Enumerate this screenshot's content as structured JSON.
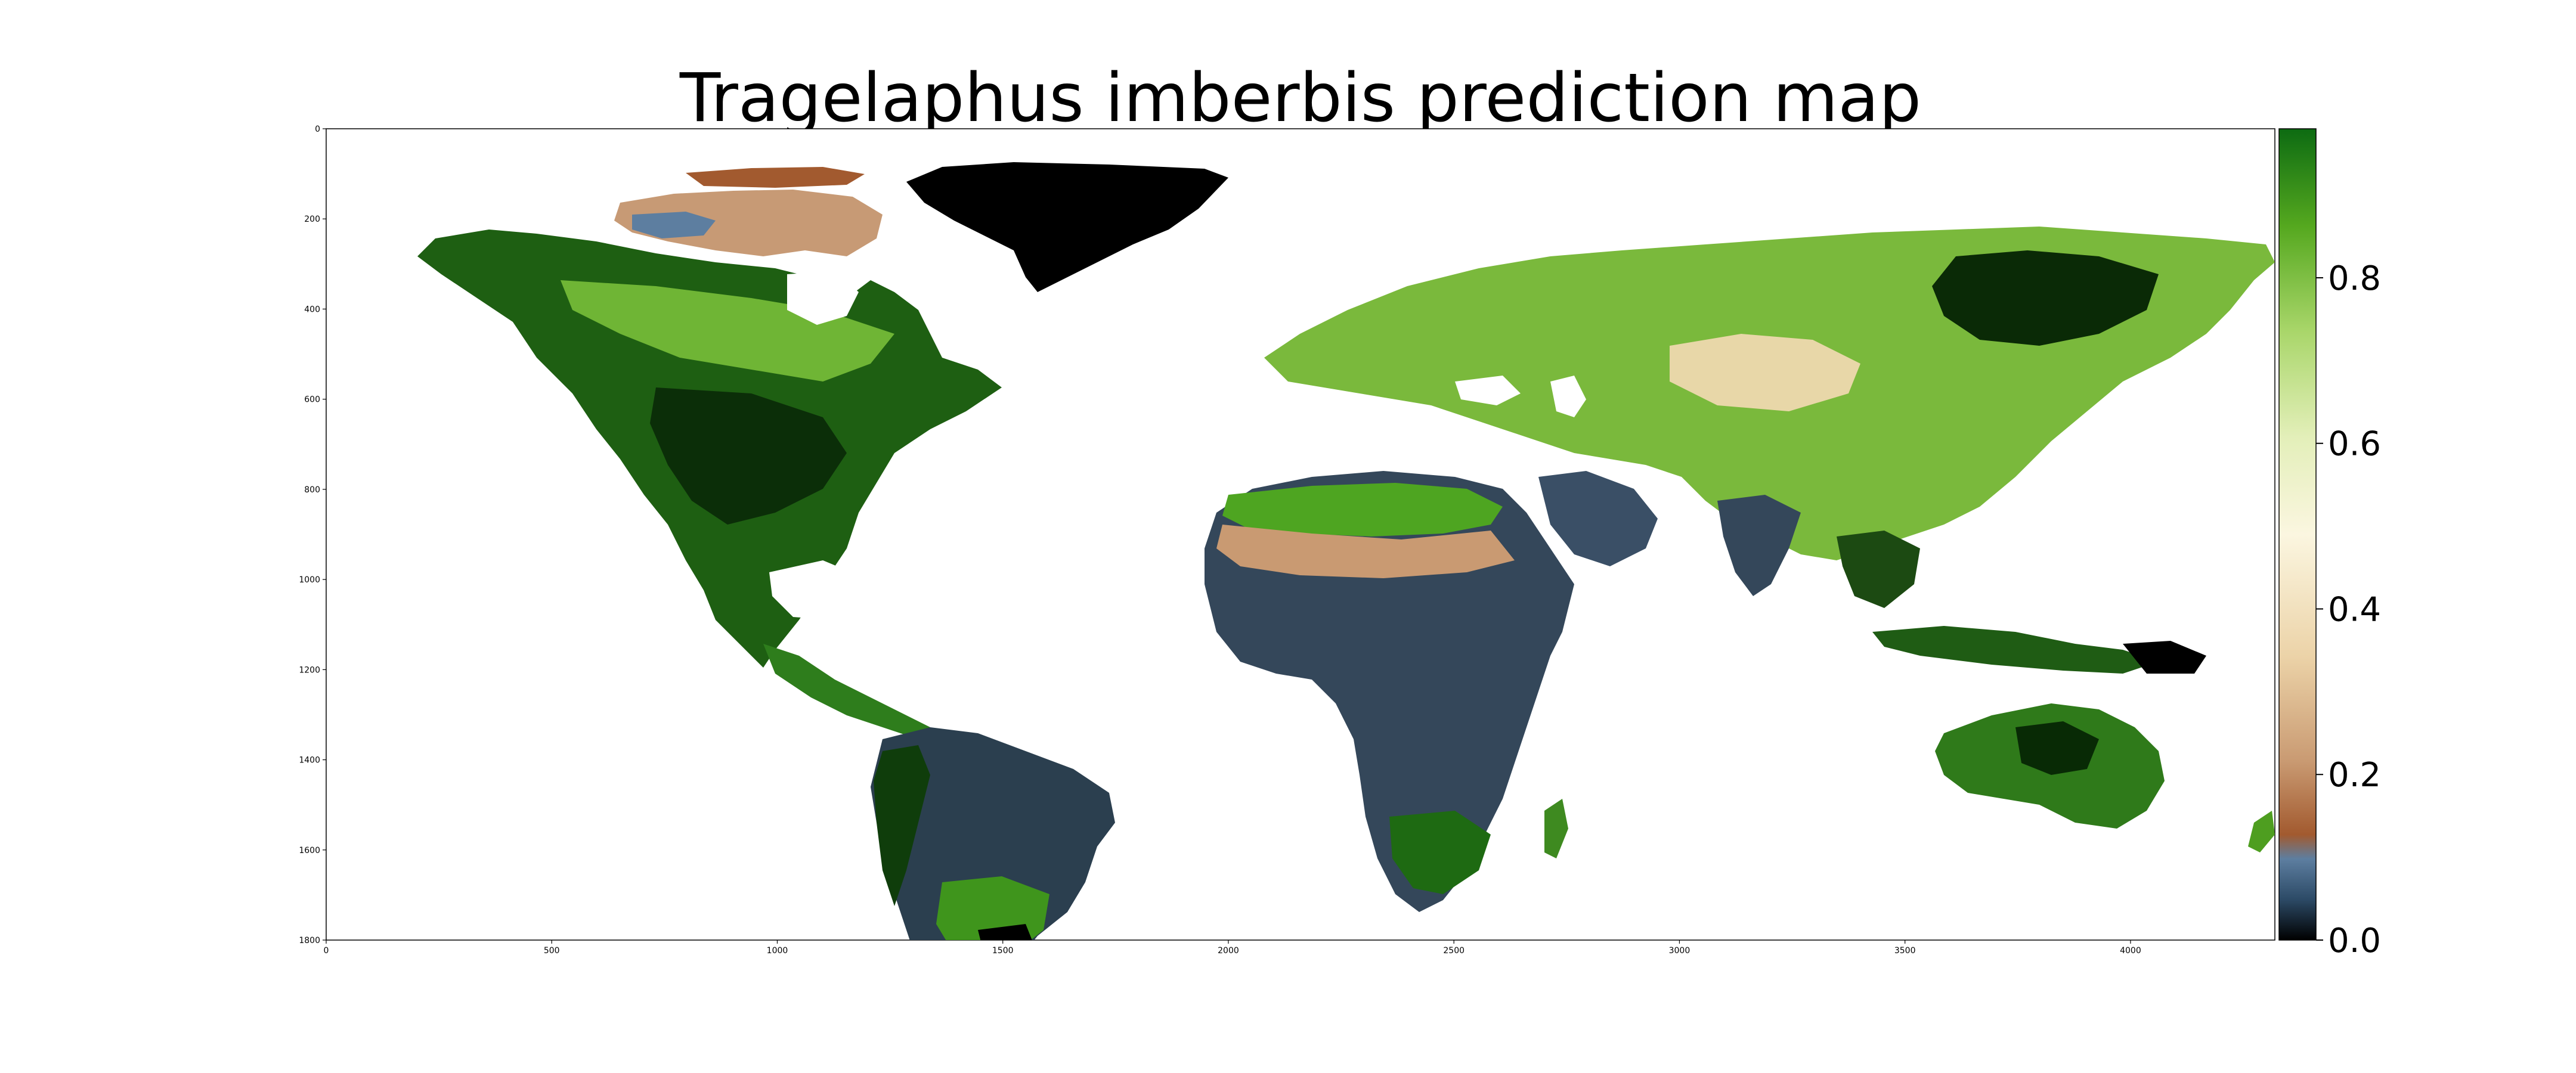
{
  "title": "Tragelaphus imberbis prediction map",
  "map": {
    "x_ticks": [
      "0",
      "500",
      "1000",
      "1500",
      "2000",
      "2500",
      "3000",
      "3500",
      "4000"
    ],
    "x_tick_values": [
      0,
      500,
      1000,
      1500,
      2000,
      2500,
      3000,
      3500,
      4000
    ],
    "y_ticks": [
      "0",
      "200",
      "400",
      "600",
      "800",
      "1000",
      "1200",
      "1400",
      "1600",
      "1800"
    ],
    "y_tick_values": [
      0,
      200,
      400,
      600,
      800,
      1000,
      1200,
      1400,
      1600,
      1800
    ],
    "xlim": [
      0,
      4320
    ],
    "ylim": [
      0,
      1800
    ],
    "background_color": "#ffffff"
  },
  "colorbar": {
    "ticks": [
      "0.0",
      "0.2",
      "0.4",
      "0.6",
      "0.8"
    ],
    "tick_values": [
      0.0,
      0.2,
      0.4,
      0.6,
      0.8
    ],
    "range": [
      0.0,
      0.98
    ],
    "colors": [
      {
        "stop": 0.0,
        "color": "#000000"
      },
      {
        "stop": 0.05,
        "color": "#2c4a66"
      },
      {
        "stop": 0.1,
        "color": "#5d7ea0"
      },
      {
        "stop": 0.13,
        "color": "#a25a2f"
      },
      {
        "stop": 0.22,
        "color": "#c99a72"
      },
      {
        "stop": 0.35,
        "color": "#ecd3a8"
      },
      {
        "stop": 0.5,
        "color": "#fbf6e0"
      },
      {
        "stop": 0.62,
        "color": "#e3efb9"
      },
      {
        "stop": 0.75,
        "color": "#a9d66a"
      },
      {
        "stop": 0.88,
        "color": "#55a81f"
      },
      {
        "stop": 1.0,
        "color": "#0d6b12"
      }
    ]
  },
  "regions": [
    {
      "name": "greenland",
      "color": "#000000"
    },
    {
      "name": "canada-arctic",
      "color": "#c79a75"
    },
    {
      "name": "north-america",
      "color": "#1e5f12"
    },
    {
      "name": "south-america",
      "color": "#2b3f4f"
    },
    {
      "name": "africa",
      "color": "#34475a"
    },
    {
      "name": "eurasia",
      "color": "#7ab93c"
    },
    {
      "name": "australia",
      "color": "#2f7a1a"
    }
  ]
}
